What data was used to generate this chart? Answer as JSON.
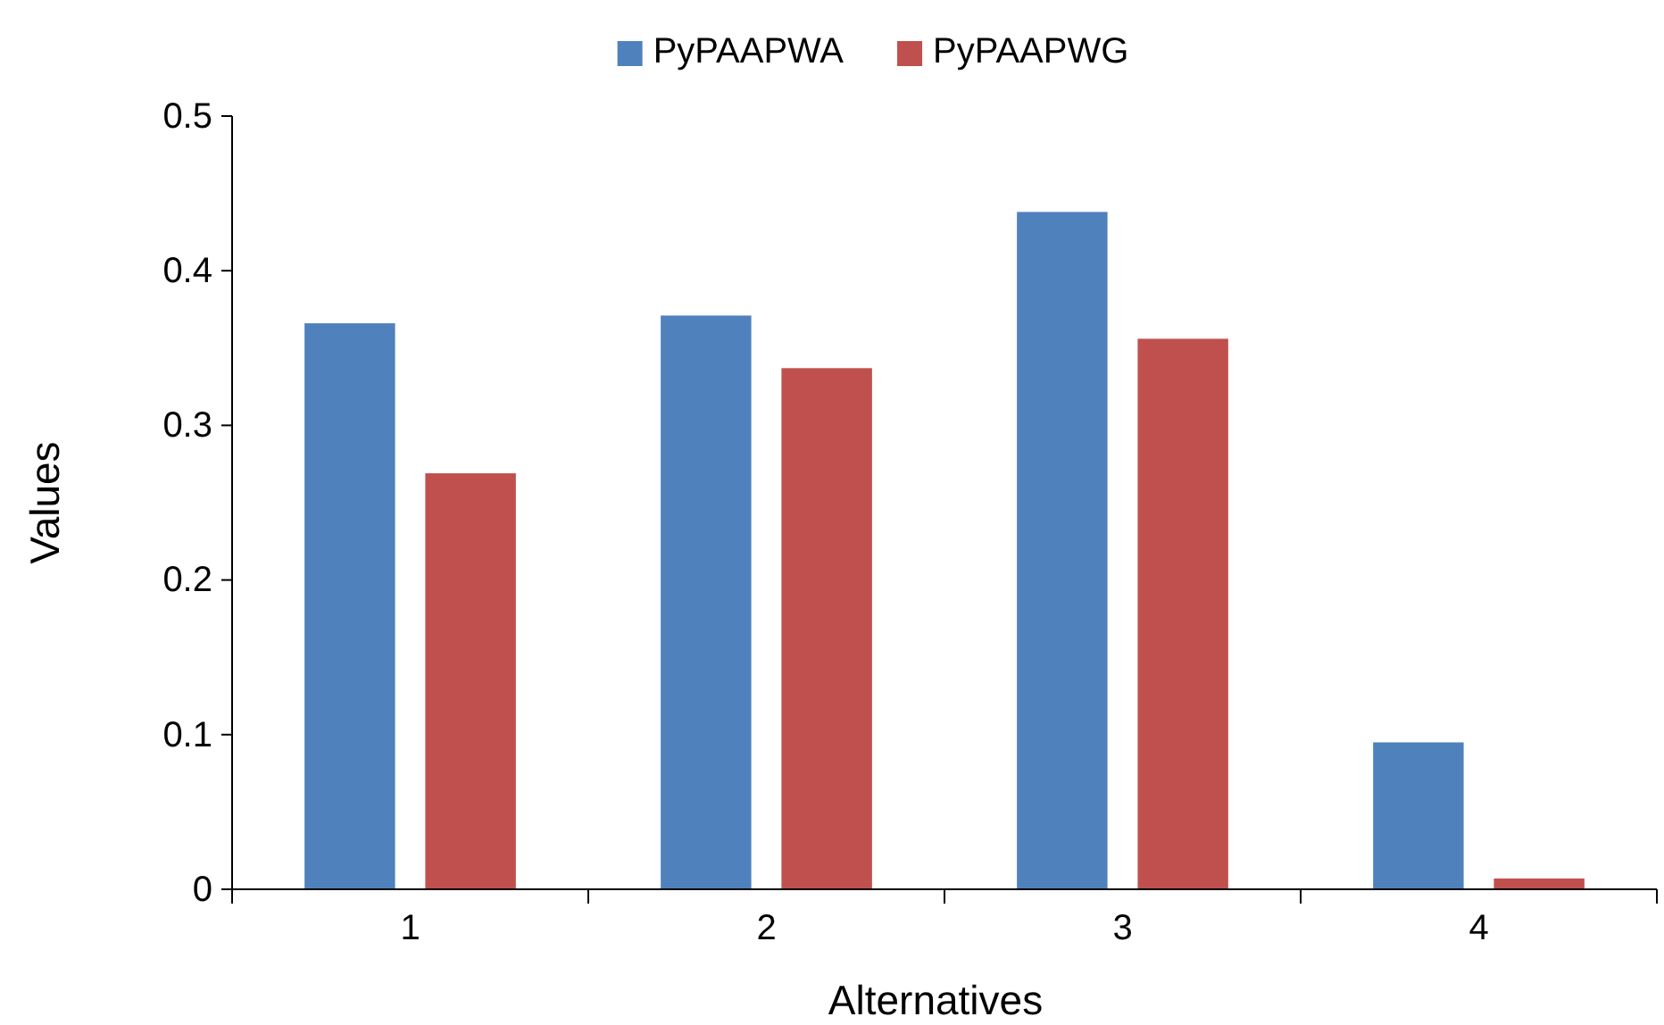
{
  "chart_data": {
    "type": "bar",
    "xlabel": "Alternatives",
    "ylabel": "Values",
    "categories": [
      "1",
      "2",
      "3",
      "4"
    ],
    "series": [
      {
        "name": "PyPAAPWA",
        "color": "#4f81bd",
        "values": [
          0.366,
          0.371,
          0.438,
          0.095
        ]
      },
      {
        "name": "PyPAAPWG",
        "color": "#c0504d",
        "values": [
          0.269,
          0.337,
          0.356,
          0.007
        ]
      }
    ],
    "ylim": [
      0,
      0.5
    ],
    "yticks": [
      {
        "value": 0,
        "label": "0"
      },
      0.1,
      0.2,
      0.3,
      0.4,
      0.5
    ],
    "grid": false,
    "legend": "top"
  }
}
